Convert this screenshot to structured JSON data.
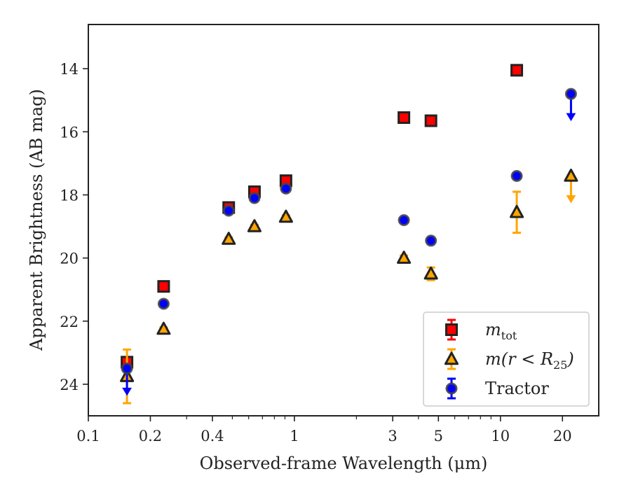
{
  "chart_data": {
    "type": "scatter",
    "xlabel": "Observed-frame Wavelength (μm)",
    "ylabel": "Apparent Brightness (AB mag)",
    "x_scale": "log",
    "xlim": [
      0.1,
      30
    ],
    "ylim": [
      25.0,
      12.6
    ],
    "y_inverted": true,
    "x_ticks": [
      {
        "value": 0.1,
        "label": "0.1"
      },
      {
        "value": 0.2,
        "label": "0.2"
      },
      {
        "value": 0.4,
        "label": "0.4"
      },
      {
        "value": 1,
        "label": "1"
      },
      {
        "value": 3,
        "label": "3"
      },
      {
        "value": 5,
        "label": "5"
      },
      {
        "value": 10,
        "label": "10"
      },
      {
        "value": 20,
        "label": "20"
      }
    ],
    "y_ticks": [
      {
        "value": 14,
        "label": "14"
      },
      {
        "value": 16,
        "label": "16"
      },
      {
        "value": 18,
        "label": "18"
      },
      {
        "value": 20,
        "label": "20"
      },
      {
        "value": 22,
        "label": "22"
      },
      {
        "value": 24,
        "label": "24"
      }
    ],
    "grid": false,
    "legend_position": "lower-right",
    "series": [
      {
        "name": "m_tot",
        "legend_main": "m",
        "legend_sub": "tot",
        "marker": "square",
        "color": "#ff0000",
        "edge": "#222222",
        "points": [
          {
            "x": 0.154,
            "y": 23.3,
            "err": 0.12
          },
          {
            "x": 0.232,
            "y": 20.9,
            "err": 0.08
          },
          {
            "x": 0.48,
            "y": 18.4,
            "err": 0.08
          },
          {
            "x": 0.64,
            "y": 17.9,
            "err": 0.08
          },
          {
            "x": 0.91,
            "y": 17.55,
            "err": 0.08
          },
          {
            "x": 3.4,
            "y": 15.55,
            "err": 0.05
          },
          {
            "x": 4.6,
            "y": 15.65,
            "err": 0.05
          },
          {
            "x": 12.0,
            "y": 14.05,
            "err": 0.05
          }
        ]
      },
      {
        "name": "m(r < R_25)",
        "legend_main": "m(r < R",
        "legend_sub": "25",
        "legend_tail": ")",
        "marker": "triangle",
        "color": "#ffa500",
        "edge": "#222222",
        "points": [
          {
            "x": 0.154,
            "y": 23.75,
            "err": 0.85
          },
          {
            "x": 0.232,
            "y": 22.25,
            "err": 0.05
          },
          {
            "x": 0.48,
            "y": 19.4,
            "err": 0.05
          },
          {
            "x": 0.64,
            "y": 19.0,
            "err": 0.05
          },
          {
            "x": 0.91,
            "y": 18.7,
            "err": 0.05
          },
          {
            "x": 3.4,
            "y": 20.0,
            "err": 0.08
          },
          {
            "x": 4.6,
            "y": 20.5,
            "err": 0.2
          },
          {
            "x": 12.0,
            "y": 18.55,
            "err": 0.65
          },
          {
            "x": 22.0,
            "y": 17.4,
            "upper_limit": true
          }
        ]
      },
      {
        "name": "Tractor",
        "legend_main": "Tractor",
        "marker": "circle",
        "color": "#0000ff",
        "edge": "#444444",
        "points": [
          {
            "x": 0.154,
            "y": 23.5,
            "upper_limit": true
          },
          {
            "x": 0.232,
            "y": 21.45,
            "err": 0.04
          },
          {
            "x": 0.48,
            "y": 18.5,
            "err": 0.04
          },
          {
            "x": 0.64,
            "y": 18.1,
            "err": 0.04
          },
          {
            "x": 0.91,
            "y": 17.8,
            "err": 0.04
          },
          {
            "x": 3.4,
            "y": 18.8,
            "err": 0.04
          },
          {
            "x": 4.6,
            "y": 19.45,
            "err": 0.04
          },
          {
            "x": 12.0,
            "y": 17.4,
            "err": 0.04
          },
          {
            "x": 22.0,
            "y": 14.8,
            "upper_limit": true
          }
        ]
      }
    ]
  }
}
